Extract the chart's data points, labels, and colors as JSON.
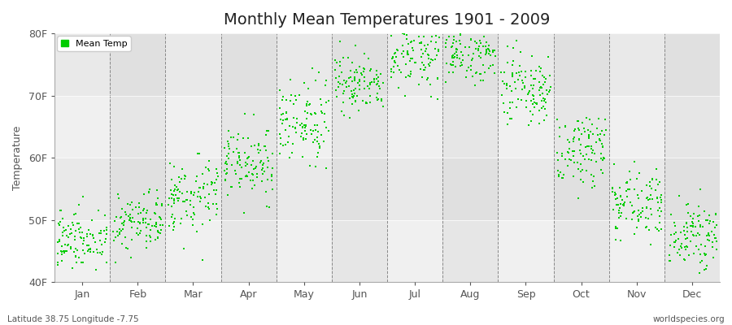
{
  "title": "Monthly Mean Temperatures 1901 - 2009",
  "ylabel": "Temperature",
  "yticks": [
    40,
    50,
    60,
    70,
    80
  ],
  "ytick_labels": [
    "40F",
    "50F",
    "60F",
    "70F",
    "80F"
  ],
  "ylim": [
    40,
    80
  ],
  "months": [
    "Jan",
    "Feb",
    "Mar",
    "Apr",
    "May",
    "Jun",
    "Jul",
    "Aug",
    "Sep",
    "Oct",
    "Nov",
    "Dec"
  ],
  "dot_color": "#00cc00",
  "dot_size": 2,
  "legend_label": "Mean Temp",
  "bg_light": "#ebebeb",
  "bg_dark": "#d8d8d8",
  "title_fontsize": 14,
  "axis_fontsize": 9,
  "tick_fontsize": 9,
  "footer_left": "Latitude 38.75 Longitude -7.75",
  "footer_right": "worldspecies.org",
  "monthly_means": [
    47.0,
    49.5,
    54.0,
    59.0,
    65.5,
    72.0,
    76.5,
    76.5,
    70.5,
    61.5,
    53.0,
    47.5
  ],
  "monthly_stds": [
    2.5,
    2.5,
    3.0,
    3.0,
    3.0,
    2.5,
    2.5,
    2.5,
    3.0,
    3.0,
    2.5,
    2.5
  ]
}
